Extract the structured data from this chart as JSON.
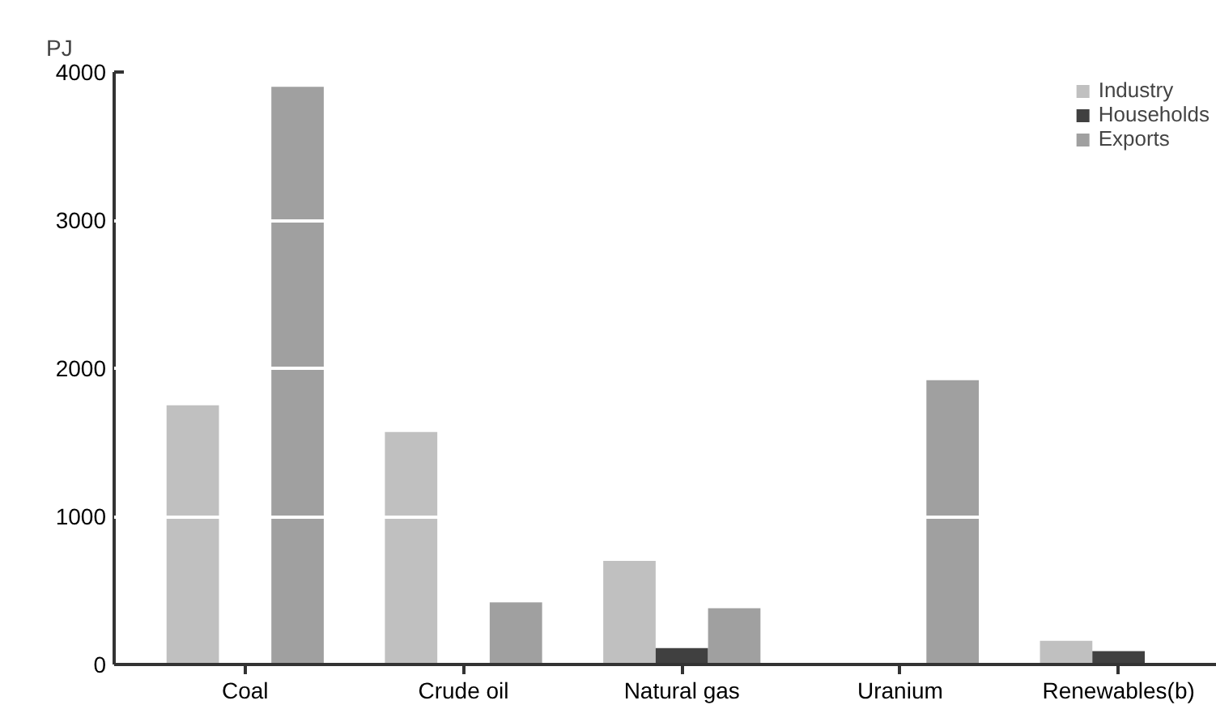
{
  "chart_data": {
    "type": "bar",
    "ylabel": "PJ",
    "categories": [
      "Coal",
      "Crude oil",
      "Natural gas",
      "Uranium",
      "Renewables(b)"
    ],
    "series": [
      {
        "name": "Industry",
        "color": "#c0c0c0",
        "values": [
          1750,
          1570,
          700,
          null,
          160
        ]
      },
      {
        "name": "Households",
        "color": "#404040",
        "values": [
          null,
          null,
          110,
          null,
          90
        ]
      },
      {
        "name": "Exports",
        "color": "#a0a0a0",
        "values": [
          3900,
          420,
          380,
          1920,
          null
        ]
      }
    ],
    "ylim": [
      0,
      4000
    ],
    "yticks": [
      0,
      1000,
      2000,
      3000,
      4000
    ],
    "grid": "y",
    "legend": "top right"
  }
}
